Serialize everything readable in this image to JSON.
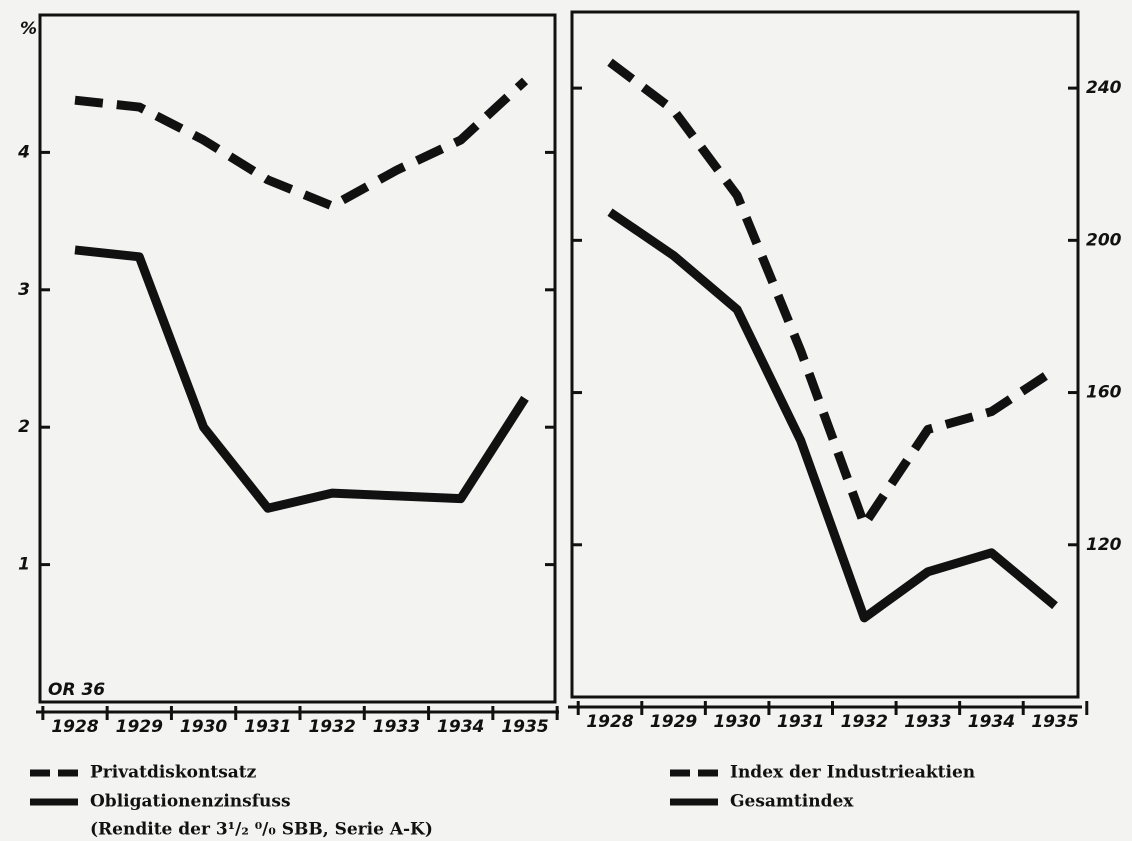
{
  "chart_data": [
    {
      "type": "line",
      "y_unit": "%",
      "annotation": "OR 36",
      "y_axis_side": "left",
      "categories": [
        "1928",
        "1929",
        "1930",
        "1931",
        "1932",
        "1933",
        "1934",
        "1935"
      ],
      "ylim": [
        0,
        5
      ],
      "yticks": [
        1,
        2,
        3,
        4
      ],
      "series": [
        {
          "name": "Privatdiskontsatz",
          "color": "#111111",
          "dash": "dashed",
          "values": [
            4.38,
            4.33,
            4.09,
            3.8,
            3.61,
            3.87,
            4.09,
            4.52
          ]
        },
        {
          "name": "Obligationenzinsfuss",
          "color": "#111111",
          "dash": "solid",
          "values": [
            3.29,
            3.24,
            2.0,
            1.41,
            1.52,
            1.5,
            1.48,
            2.21
          ]
        }
      ],
      "legend_note": "(Rendite der 3¹/₂ ⁰/₀ SBB, Serie A-K)"
    },
    {
      "type": "line",
      "y_axis_side": "right",
      "categories": [
        "1928",
        "1929",
        "1930",
        "1931",
        "1932",
        "1933",
        "1934",
        "1935"
      ],
      "ylim": [
        80,
        260
      ],
      "yticks": [
        120,
        160,
        200,
        240
      ],
      "series": [
        {
          "name": "Index der Industrieaktien",
          "color": "#111111",
          "dash": "dashed",
          "values": [
            246.8,
            234.2,
            211.8,
            171,
            125.3,
            150.3,
            155,
            166
          ]
        },
        {
          "name": "Gesamtindex",
          "color": "#111111",
          "dash": "solid",
          "values": [
            207.4,
            196,
            181.8,
            147.4,
            100.8,
            112.9,
            117.9,
            104
          ]
        }
      ]
    }
  ]
}
